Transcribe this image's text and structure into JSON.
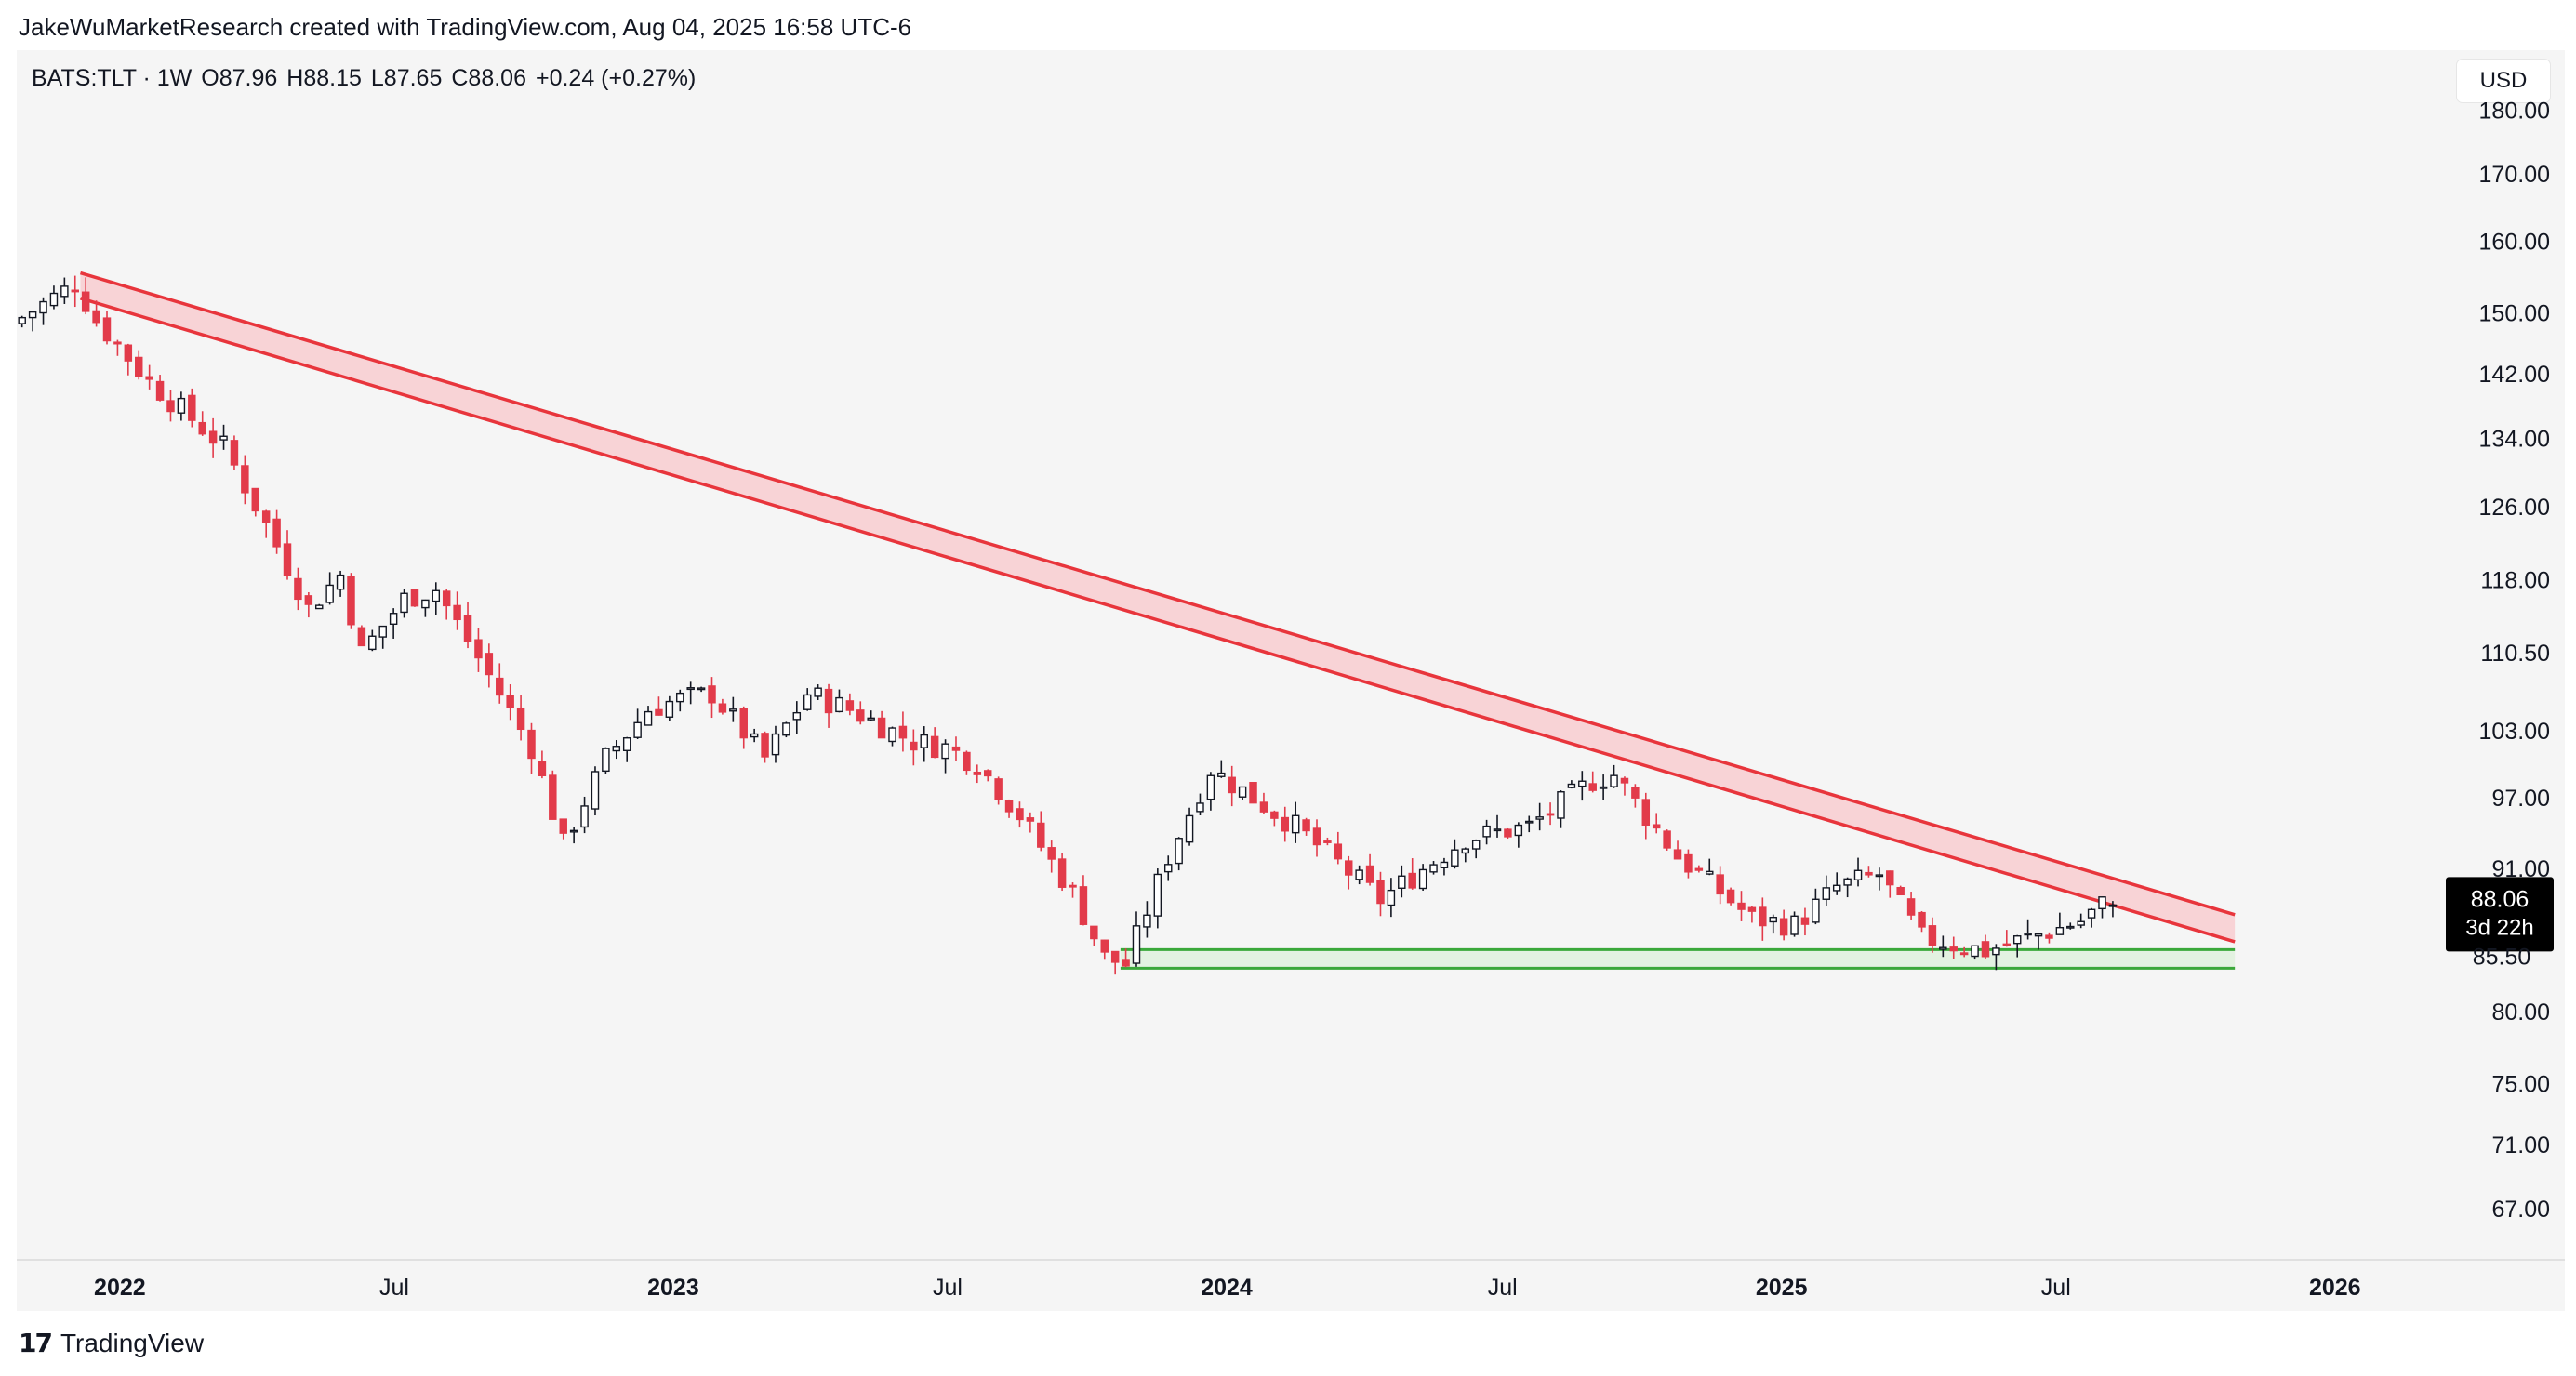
{
  "header": {
    "attribution": "JakeWuMarketResearch created with TradingView.com, Aug 04, 2025 16:58 UTC-6"
  },
  "legend": {
    "symbol": "BATS:TLT · 1W",
    "open": "O87.96",
    "high": "H88.15",
    "low": "L87.65",
    "close": "C88.06",
    "change": "+0.24 (+0.27%)"
  },
  "currency": "USD",
  "brand": {
    "name": "TradingView",
    "logo": "tradingview-logo-icon"
  },
  "colors": {
    "up_border": "#131722",
    "up_fill": "#ffffff",
    "down": "#e23b4a",
    "trend_line": "#e8353c",
    "trend_fill": "#f8d3d6",
    "support_line": "#3aa83a",
    "support_fill": "#e3f2e1",
    "panel": "#f5f5f5"
  },
  "chart_data": {
    "type": "candlestick",
    "interval": "1W",
    "y_scale": "log",
    "ylim": [
      64,
      190
    ],
    "x_range": [
      "2021-10-25",
      "2026-03-09"
    ],
    "y_ticks": [
      "180.00",
      "170.00",
      "160.00",
      "150.00",
      "142.00",
      "134.00",
      "126.00",
      "118.00",
      "110.50",
      "103.00",
      "97.00",
      "91.00",
      "80.00",
      "75.00",
      "71.00",
      "67.00"
    ],
    "x_ticks": [
      {
        "date": "2022-01-01",
        "label": "2022",
        "bold": true
      },
      {
        "date": "2022-07-01",
        "label": "Jul",
        "bold": false
      },
      {
        "date": "2023-01-01",
        "label": "2023",
        "bold": true
      },
      {
        "date": "2023-07-01",
        "label": "Jul",
        "bold": false
      },
      {
        "date": "2024-01-01",
        "label": "2024",
        "bold": true
      },
      {
        "date": "2024-07-01",
        "label": "Jul",
        "bold": false
      },
      {
        "date": "2025-01-01",
        "label": "2025",
        "bold": true
      },
      {
        "date": "2025-07-01",
        "label": "Jul",
        "bold": false
      },
      {
        "date": "2026-01-01",
        "label": "2026",
        "bold": true
      }
    ],
    "last_price": {
      "value": 88.06,
      "label": "88.06",
      "countdown": "3d 22h",
      "hidden_level": "85.50"
    },
    "anchors": [
      [
        "2021-10-25",
        148.5
      ],
      [
        "2021-12-06",
        154.0
      ],
      [
        "2021-12-20",
        149.0
      ],
      [
        "2022-01-24",
        141.0
      ],
      [
        "2022-03-14",
        133.0
      ],
      [
        "2022-04-11",
        124.0
      ],
      [
        "2022-05-09",
        115.0
      ],
      [
        "2022-05-30",
        118.5
      ],
      [
        "2022-06-13",
        110.5
      ],
      [
        "2022-07-11",
        116.0
      ],
      [
        "2022-08-01",
        117.0
      ],
      [
        "2022-08-29",
        110.0
      ],
      [
        "2022-10-03",
        101.5
      ],
      [
        "2022-10-24",
        93.0
      ],
      [
        "2022-11-21",
        100.5
      ],
      [
        "2022-12-19",
        105.0
      ],
      [
        "2023-01-09",
        106.0
      ],
      [
        "2023-01-30",
        106.5
      ],
      [
        "2023-03-06",
        100.5
      ],
      [
        "2023-04-03",
        106.5
      ],
      [
        "2023-05-01",
        105.0
      ],
      [
        "2023-06-12",
        102.0
      ],
      [
        "2023-07-03",
        101.5
      ],
      [
        "2023-07-24",
        100.0
      ],
      [
        "2023-08-21",
        95.5
      ],
      [
        "2023-09-25",
        89.0
      ],
      [
        "2023-10-16",
        84.0
      ],
      [
        "2023-10-30",
        83.5
      ],
      [
        "2023-11-27",
        92.0
      ],
      [
        "2023-12-25",
        99.5
      ],
      [
        "2024-02-19",
        94.5
      ],
      [
        "2024-04-15",
        88.5
      ],
      [
        "2024-06-10",
        93.5
      ],
      [
        "2024-07-22",
        94.5
      ],
      [
        "2024-09-02",
        98.5
      ],
      [
        "2024-09-16",
        99.0
      ],
      [
        "2024-10-28",
        92.0
      ],
      [
        "2024-12-16",
        87.0
      ],
      [
        "2025-01-13",
        86.5
      ],
      [
        "2025-02-10",
        89.5
      ],
      [
        "2025-03-10",
        90.5
      ],
      [
        "2025-04-07",
        85.5
      ],
      [
        "2025-05-19",
        84.5
      ],
      [
        "2025-06-30",
        86.0
      ],
      [
        "2025-07-21",
        86.8
      ],
      [
        "2025-08-04",
        88.06
      ]
    ],
    "annotations": [
      {
        "type": "descending_channel",
        "name": "trend-resistance-band",
        "upper": [
          [
            "2021-12-06",
            155.5
          ],
          [
            "2025-10-27",
            87.3
          ]
        ],
        "lower": [
          [
            "2021-12-06",
            152.0
          ],
          [
            "2025-10-27",
            85.2
          ]
        ]
      },
      {
        "type": "horizontal_band",
        "name": "support-zone",
        "start": "2023-10-23",
        "end": "2025-10-27",
        "top": 84.6,
        "bottom": 83.2
      }
    ]
  }
}
